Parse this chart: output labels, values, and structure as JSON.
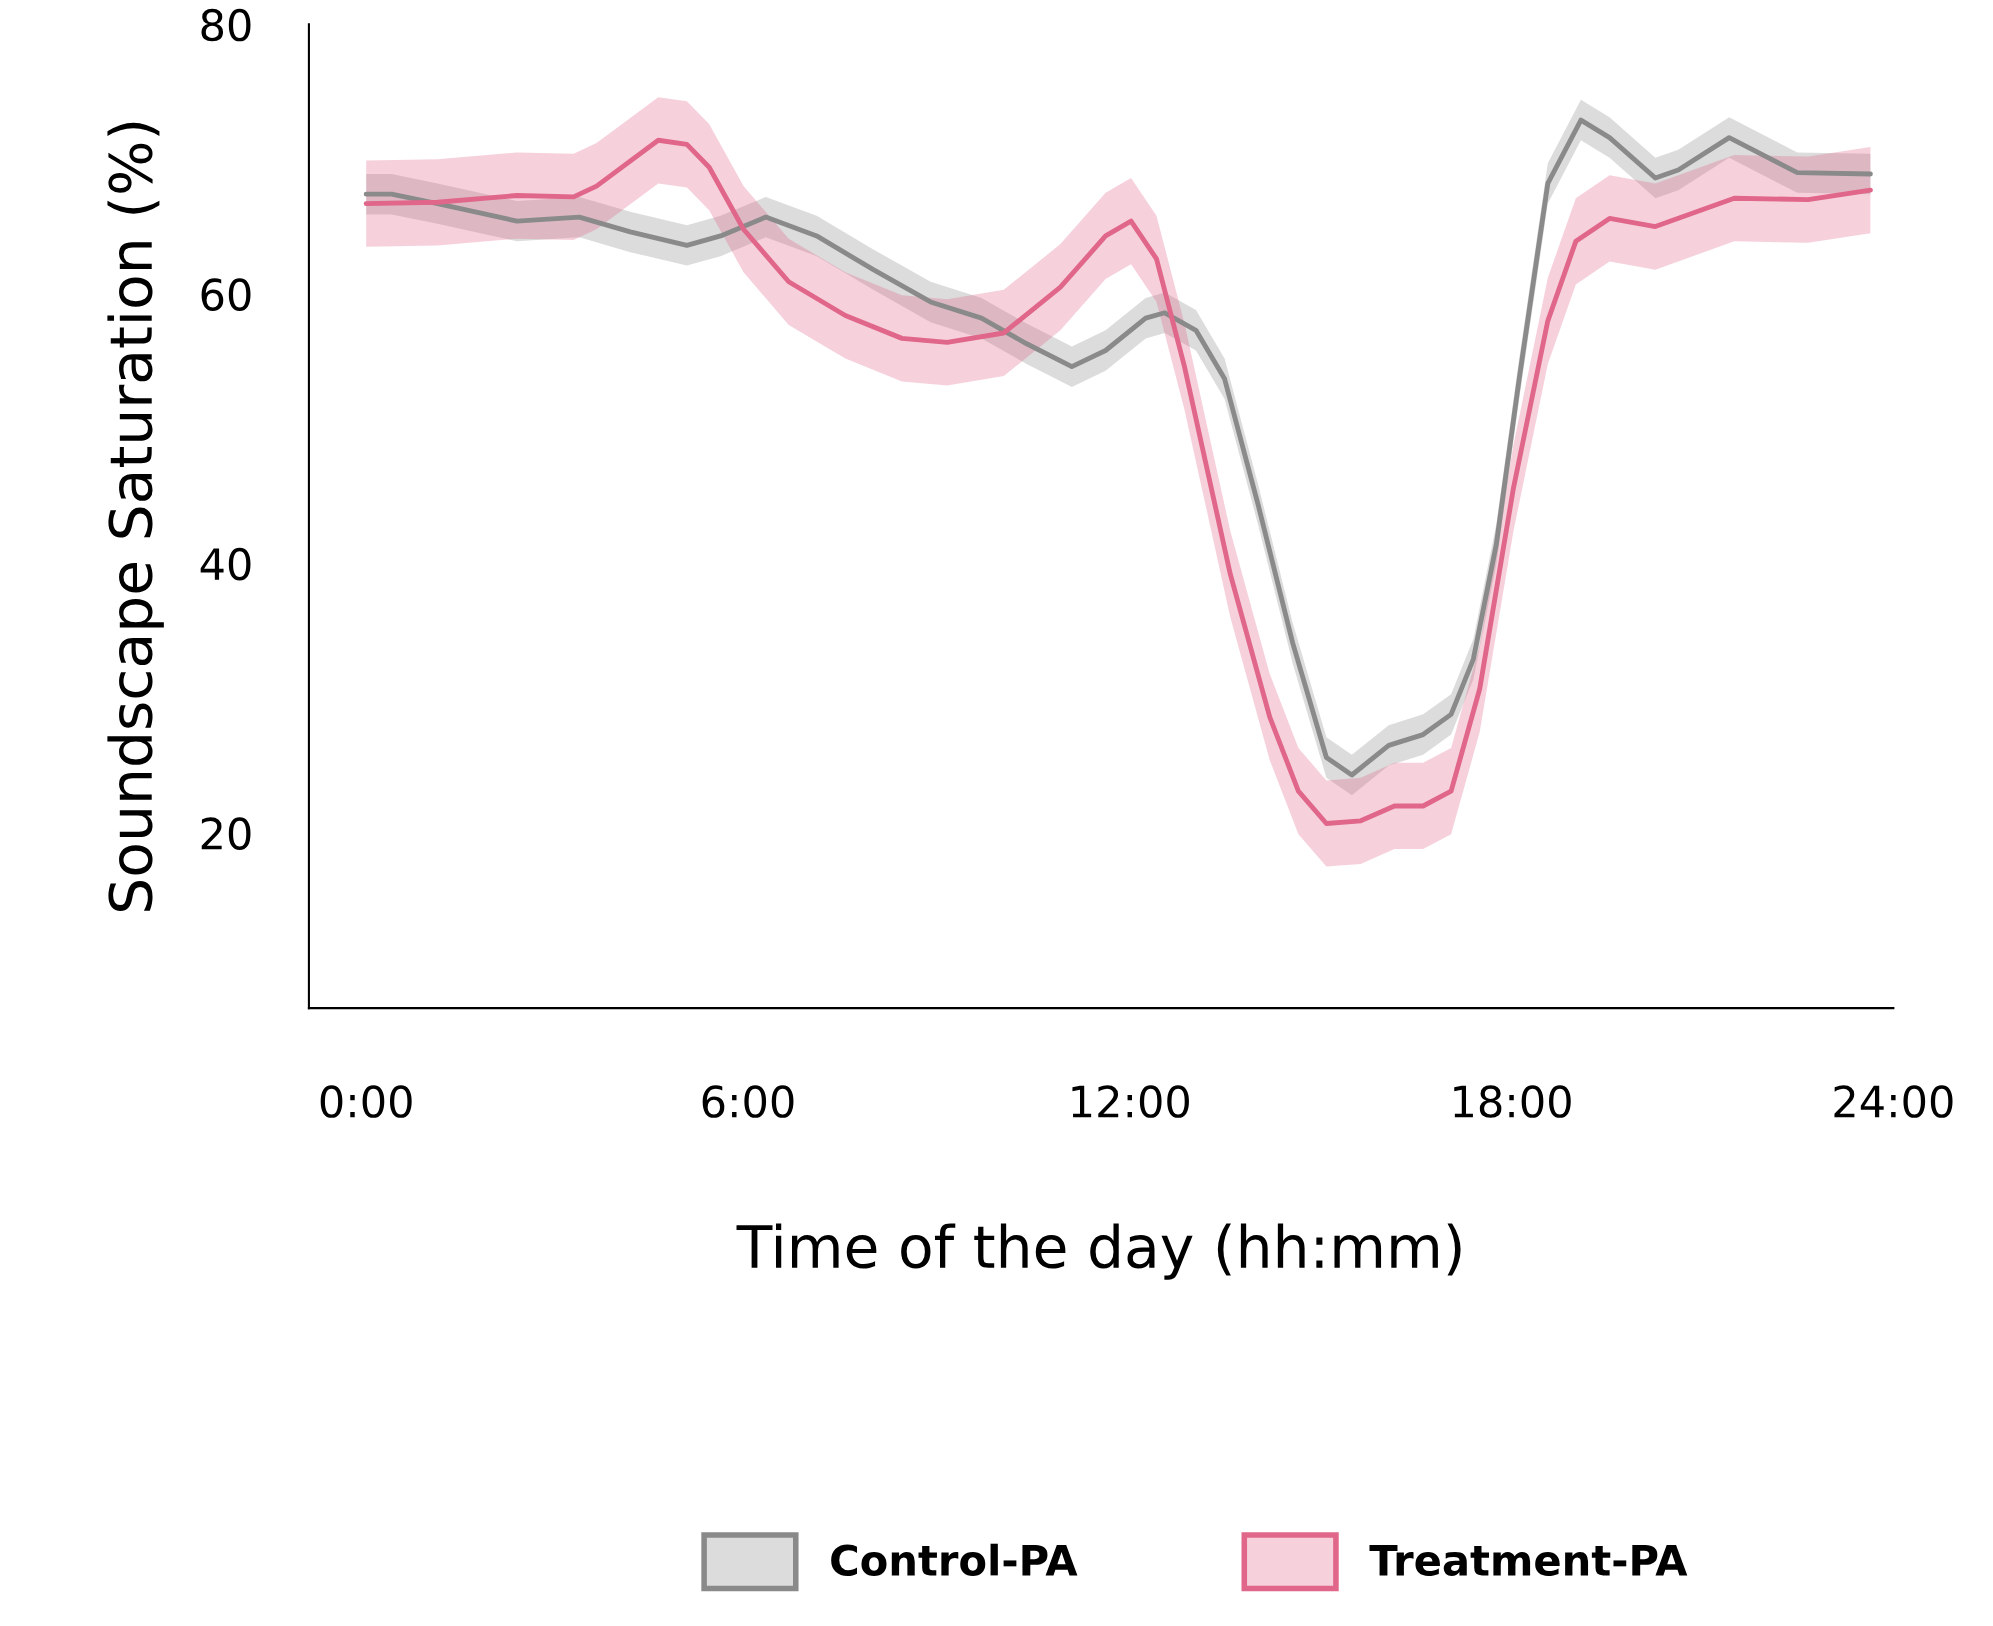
{
  "chart_data": {
    "type": "line",
    "xlabel": "Time of the day (hh:mm)",
    "ylabel": "Soundscape Saturation (%)",
    "xlim": [
      -0.9,
      24
    ],
    "ylim": [
      7,
      80
    ],
    "xticks": [
      {
        "value": 0,
        "label": "0:00"
      },
      {
        "value": 6,
        "label": "6:00"
      },
      {
        "value": 12,
        "label": "12:00"
      },
      {
        "value": 18,
        "label": "18:00"
      },
      {
        "value": 24,
        "label": "24:00"
      }
    ],
    "yticks": [
      20,
      40,
      60,
      80
    ],
    "grid": false,
    "legend": "bottom",
    "line_style": "solid",
    "series": [
      {
        "name": "Control-PA",
        "color": "#8a8a8a",
        "x": [
          0,
          0.4,
          1.12,
          2.37,
          3.35,
          4.15,
          5.04,
          5.57,
          6.28,
          7.08,
          7.97,
          8.87,
          9.67,
          10.38,
          11.09,
          11.62,
          12.25,
          12.55,
          13.04,
          13.49,
          14.02,
          14.56,
          15.09,
          15.49,
          16.07,
          16.61,
          17.05,
          17.4,
          17.76,
          18.12,
          18.57,
          19.09,
          19.54,
          20.26,
          20.62,
          21.42,
          22.49,
          23.64
        ],
        "values": [
          67.4,
          67.4,
          66.7,
          65.4,
          65.7,
          64.6,
          63.6,
          64.3,
          65.7,
          64.3,
          61.8,
          59.4,
          58.2,
          56.3,
          54.6,
          55.8,
          58.2,
          58.6,
          57.3,
          53.7,
          44.3,
          34.1,
          25.6,
          24.3,
          26.5,
          27.3,
          28.8,
          32.9,
          41.4,
          53.7,
          68.2,
          72.9,
          71.6,
          68.6,
          69.2,
          71.6,
          69.0,
          68.9
        ],
        "lower": [
          65.9,
          65.9,
          65.2,
          63.9,
          64.2,
          63.1,
          62.1,
          62.8,
          64.2,
          62.8,
          60.3,
          57.9,
          56.7,
          54.8,
          53.1,
          54.3,
          56.7,
          57.1,
          55.8,
          52.2,
          42.8,
          32.6,
          24.1,
          22.8,
          25.0,
          25.8,
          27.3,
          31.4,
          39.9,
          52.2,
          66.7,
          71.4,
          70.1,
          67.1,
          67.7,
          70.1,
          67.5,
          67.4
        ],
        "upper": [
          68.9,
          68.9,
          68.2,
          66.9,
          67.2,
          66.1,
          65.1,
          65.8,
          67.2,
          65.8,
          63.3,
          60.9,
          59.7,
          57.8,
          56.1,
          57.3,
          59.7,
          60.1,
          58.8,
          55.2,
          45.8,
          35.6,
          27.1,
          25.8,
          28.0,
          28.8,
          30.3,
          34.4,
          42.9,
          55.2,
          69.7,
          74.4,
          73.1,
          70.1,
          70.7,
          73.1,
          70.5,
          70.4
        ]
      },
      {
        "name": "Treatment-PA",
        "color": "#e0668a",
        "x": [
          0,
          1.12,
          2.37,
          3.26,
          3.62,
          4.59,
          5.04,
          5.39,
          5.93,
          6.64,
          7.53,
          8.42,
          9.13,
          10.02,
          10.91,
          11.62,
          12.02,
          12.42,
          12.86,
          13.58,
          14.2,
          14.65,
          15.09,
          15.63,
          16.16,
          16.61,
          17.05,
          17.5,
          18.03,
          18.57,
          19.01,
          19.54,
          20.26,
          21.5,
          22.66,
          23.64
        ],
        "values": [
          66.7,
          66.8,
          67.3,
          67.2,
          68.0,
          71.4,
          71.1,
          69.4,
          64.8,
          60.9,
          58.4,
          56.7,
          56.4,
          57.1,
          60.5,
          64.3,
          65.4,
          62.6,
          54.6,
          39.2,
          28.6,
          23.1,
          20.7,
          20.9,
          22.0,
          22.0,
          23.1,
          30.7,
          45.6,
          58.0,
          63.9,
          65.6,
          65.0,
          67.1,
          67.0,
          67.7
        ],
        "lower": [
          63.5,
          63.6,
          64.1,
          64.0,
          64.8,
          68.2,
          67.9,
          66.2,
          61.6,
          57.7,
          55.2,
          53.5,
          53.2,
          53.9,
          57.3,
          61.1,
          62.2,
          59.4,
          51.4,
          36.0,
          25.4,
          19.9,
          17.5,
          17.7,
          18.8,
          18.8,
          19.9,
          27.5,
          42.4,
          54.8,
          60.7,
          62.4,
          61.8,
          63.9,
          63.8,
          64.5
        ],
        "upper": [
          69.9,
          70.0,
          70.5,
          70.4,
          71.2,
          74.6,
          74.3,
          72.6,
          68.0,
          64.1,
          61.6,
          59.9,
          59.6,
          60.3,
          63.7,
          67.5,
          68.6,
          65.8,
          57.8,
          42.4,
          31.8,
          26.3,
          23.9,
          24.1,
          25.2,
          25.2,
          26.3,
          33.9,
          48.8,
          61.2,
          67.1,
          68.8,
          68.2,
          70.3,
          70.2,
          70.9
        ]
      }
    ]
  }
}
